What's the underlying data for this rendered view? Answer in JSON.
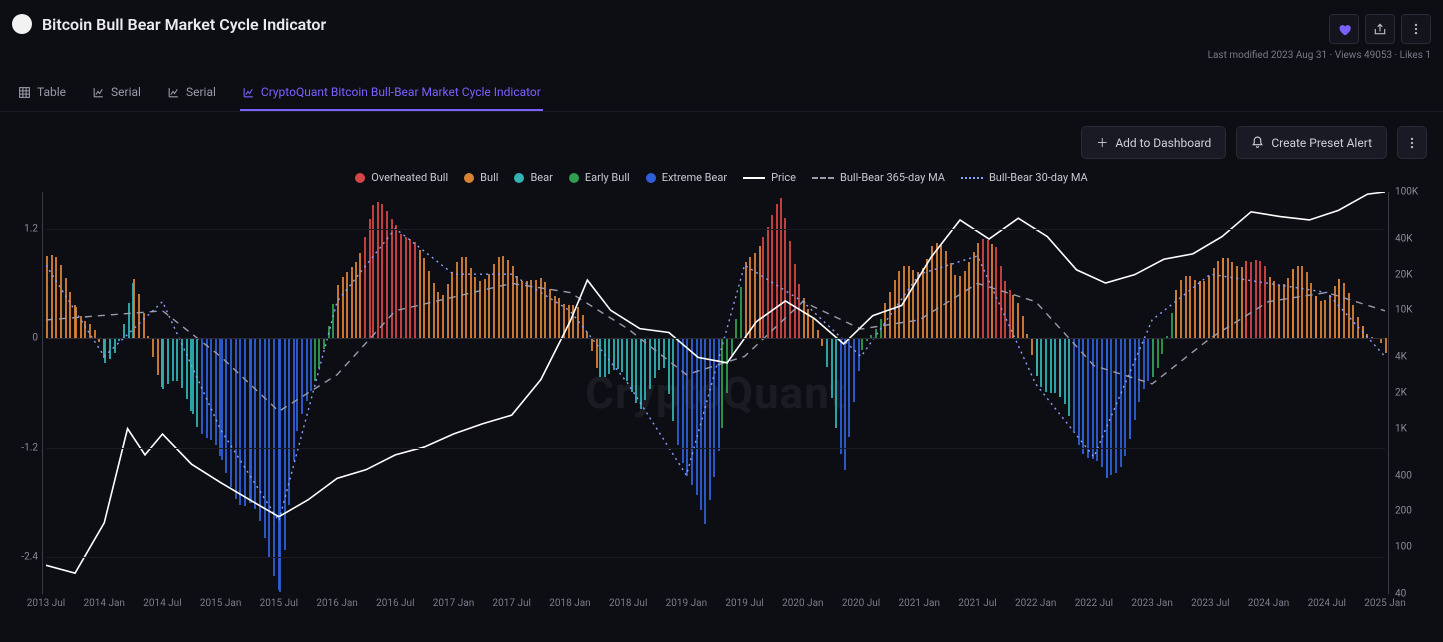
{
  "header": {
    "title": "Bitcoin Bull Bear Market Cycle Indicator",
    "meta": "Last modified 2023 Aug 31 · Views 49053 · Likes 1"
  },
  "tabs": {
    "items": [
      {
        "icon": "table",
        "label": "Table",
        "active": false
      },
      {
        "icon": "chart",
        "label": "Serial",
        "active": false
      },
      {
        "icon": "chart",
        "label": "Serial",
        "active": false
      },
      {
        "icon": "chart",
        "label": "CryptoQuant Bitcoin Bull-Bear Market Cycle Indicator",
        "active": true
      }
    ]
  },
  "toolbar": {
    "add_dashboard": "Add to Dashboard",
    "create_alert": "Create Preset Alert"
  },
  "legend": {
    "items": [
      {
        "type": "dot",
        "color": "#d64545",
        "label": "Overheated Bull"
      },
      {
        "type": "dot",
        "color": "#d98236",
        "label": "Bull"
      },
      {
        "type": "dot",
        "color": "#2fb3b3",
        "label": "Bear"
      },
      {
        "type": "dot",
        "color": "#2e9e4f",
        "label": "Early Bull"
      },
      {
        "type": "dot",
        "color": "#2e5fd6",
        "label": "Extreme Bear"
      },
      {
        "type": "line",
        "color": "#ffffff",
        "label": "Price"
      },
      {
        "type": "dash",
        "color": "#9a9aaa",
        "label": "Bull-Bear 365-day MA"
      },
      {
        "type": "dots",
        "color": "#8aa0ff",
        "label": "Bull-Bear 30-day MA"
      }
    ]
  },
  "chart": {
    "type": "combo-bar-line",
    "background_color": "#0d0d14",
    "grid_color": "#1b1b24",
    "watermark": "CryptoQuant",
    "left_axis": {
      "label": "",
      "ylim": [
        -2.8,
        1.6
      ],
      "ticks": [
        1.2,
        0,
        -1.2,
        -2.4
      ],
      "tick_labels": [
        "1.2",
        "0",
        "-1.2",
        "-2.4"
      ],
      "color": "#8b8b9a",
      "fontsize": 10
    },
    "right_axis": {
      "label": "",
      "scale": "log",
      "ticks": [
        100000,
        40000,
        20000,
        10000,
        4000,
        2000,
        1000,
        400,
        200,
        100,
        40
      ],
      "tick_labels": [
        "100K",
        "40K",
        "20K",
        "10K",
        "4K",
        "2K",
        "1K",
        "400",
        "200",
        "100",
        "40"
      ],
      "color": "#8b8b9a",
      "fontsize": 10
    },
    "x_axis": {
      "labels": [
        "2013 Jul",
        "2014 Jan",
        "2014 Jul",
        "2015 Jan",
        "2015 Jul",
        "2016 Jan",
        "2016 Jul",
        "2017 Jan",
        "2017 Jul",
        "2018 Jan",
        "2018 Jul",
        "2019 Jan",
        "2019 Jul",
        "2020 Jan",
        "2020 Jul",
        "2021 Jan",
        "2021 Jul",
        "2022 Jan",
        "2022 Jul",
        "2023 Jan",
        "2023 Jul",
        "2024 Jan",
        "2024 Jul",
        "2025 Jan"
      ],
      "color": "#7d7d8c",
      "fontsize": 10
    },
    "colors": {
      "overheated_bull": "#d64545",
      "bull": "#d98236",
      "bear": "#2fb3b3",
      "early_bull": "#2e9e4f",
      "extreme_bear": "#2e5fd6",
      "price": "#ffffff",
      "ma365": "#9a9aaa",
      "ma30": "#8aa0ff"
    },
    "indicator_series": [
      {
        "x": 0,
        "v": 0.9,
        "c": "bull"
      },
      {
        "x": 0.5,
        "v": 0.4,
        "c": "bull"
      },
      {
        "x": 1,
        "v": -0.3,
        "c": "bear"
      },
      {
        "x": 1.5,
        "v": 0.6,
        "c": "bull"
      },
      {
        "x": 2,
        "v": -0.5,
        "c": "bear"
      },
      {
        "x": 2.5,
        "v": -0.8,
        "c": "bear"
      },
      {
        "x": 3,
        "v": -1.4,
        "c": "extreme_bear"
      },
      {
        "x": 3.5,
        "v": -1.8,
        "c": "extreme_bear"
      },
      {
        "x": 4,
        "v": -2.7,
        "c": "extreme_bear"
      },
      {
        "x": 4.3,
        "v": -1.2,
        "c": "extreme_bear"
      },
      {
        "x": 4.6,
        "v": -0.4,
        "c": "early_bull"
      },
      {
        "x": 5,
        "v": 0.5,
        "c": "bull"
      },
      {
        "x": 5.3,
        "v": 1.0,
        "c": "bull"
      },
      {
        "x": 5.6,
        "v": 1.4,
        "c": "overheated_bull"
      },
      {
        "x": 6,
        "v": 1.3,
        "c": "overheated_bull"
      },
      {
        "x": 6.4,
        "v": 0.8,
        "c": "bull"
      },
      {
        "x": 6.8,
        "v": 0.6,
        "c": "bull"
      },
      {
        "x": 7.2,
        "v": 0.9,
        "c": "bull"
      },
      {
        "x": 7.6,
        "v": 0.7,
        "c": "bull"
      },
      {
        "x": 8,
        "v": 0.8,
        "c": "bull"
      },
      {
        "x": 8.4,
        "v": 0.5,
        "c": "bull"
      },
      {
        "x": 8.8,
        "v": 0.6,
        "c": "bull"
      },
      {
        "x": 9.2,
        "v": 0.2,
        "c": "bull"
      },
      {
        "x": 9.5,
        "v": -0.3,
        "c": "bear"
      },
      {
        "x": 9.8,
        "v": -0.5,
        "c": "bear"
      },
      {
        "x": 10.2,
        "v": -0.7,
        "c": "bear"
      },
      {
        "x": 10.6,
        "v": -0.4,
        "c": "bear"
      },
      {
        "x": 11,
        "v": -1.4,
        "c": "extreme_bear"
      },
      {
        "x": 11.3,
        "v": -2.1,
        "c": "extreme_bear"
      },
      {
        "x": 11.6,
        "v": -0.9,
        "c": "early_bull"
      },
      {
        "x": 12,
        "v": 0.7,
        "c": "bull"
      },
      {
        "x": 12.3,
        "v": 1.2,
        "c": "overheated_bull"
      },
      {
        "x": 12.6,
        "v": 1.45,
        "c": "overheated_bull"
      },
      {
        "x": 13,
        "v": 0.6,
        "c": "bull"
      },
      {
        "x": 13.4,
        "v": -0.4,
        "c": "bear"
      },
      {
        "x": 13.7,
        "v": -1.4,
        "c": "extreme_bear"
      },
      {
        "x": 14,
        "v": -0.3,
        "c": "early_bull"
      },
      {
        "x": 14.4,
        "v": 0.5,
        "c": "bull"
      },
      {
        "x": 14.8,
        "v": 0.8,
        "c": "bull"
      },
      {
        "x": 15.2,
        "v": 1.0,
        "c": "bull"
      },
      {
        "x": 15.6,
        "v": 0.7,
        "c": "bull"
      },
      {
        "x": 16,
        "v": 0.9,
        "c": "bull"
      },
      {
        "x": 16.3,
        "v": 1.1,
        "c": "overheated_bull"
      },
      {
        "x": 16.6,
        "v": 0.5,
        "c": "bull"
      },
      {
        "x": 17,
        "v": -0.3,
        "c": "bear"
      },
      {
        "x": 17.4,
        "v": -0.8,
        "c": "bear"
      },
      {
        "x": 17.8,
        "v": -1.2,
        "c": "extreme_bear"
      },
      {
        "x": 18.2,
        "v": -1.6,
        "c": "extreme_bear"
      },
      {
        "x": 18.6,
        "v": -1.0,
        "c": "extreme_bear"
      },
      {
        "x": 19,
        "v": -0.4,
        "c": "early_bull"
      },
      {
        "x": 19.4,
        "v": 0.4,
        "c": "bull"
      },
      {
        "x": 19.8,
        "v": 0.7,
        "c": "bull"
      },
      {
        "x": 20.2,
        "v": 0.8,
        "c": "bull"
      },
      {
        "x": 20.6,
        "v": 1.0,
        "c": "overheated_bull"
      },
      {
        "x": 21,
        "v": 0.6,
        "c": "bull"
      },
      {
        "x": 21.4,
        "v": 0.7,
        "c": "bull"
      },
      {
        "x": 21.8,
        "v": 0.5,
        "c": "bull"
      },
      {
        "x": 22.2,
        "v": 0.6,
        "c": "bull"
      },
      {
        "x": 22.6,
        "v": 0.3,
        "c": "bull"
      },
      {
        "x": 23,
        "v": -0.3,
        "c": "bear"
      }
    ],
    "price_series": [
      [
        0,
        70
      ],
      [
        0.5,
        60
      ],
      [
        1,
        160
      ],
      [
        1.4,
        1000
      ],
      [
        1.7,
        600
      ],
      [
        2,
        900
      ],
      [
        2.5,
        500
      ],
      [
        3,
        350
      ],
      [
        3.5,
        250
      ],
      [
        4,
        180
      ],
      [
        4.5,
        250
      ],
      [
        5,
        380
      ],
      [
        5.5,
        450
      ],
      [
        6,
        600
      ],
      [
        6.5,
        700
      ],
      [
        7,
        900
      ],
      [
        7.5,
        1100
      ],
      [
        8,
        1300
      ],
      [
        8.5,
        2600
      ],
      [
        9,
        8000
      ],
      [
        9.3,
        18000
      ],
      [
        9.7,
        10000
      ],
      [
        10.2,
        7000
      ],
      [
        10.7,
        6500
      ],
      [
        11.2,
        4000
      ],
      [
        11.7,
        3600
      ],
      [
        12.2,
        8000
      ],
      [
        12.7,
        12000
      ],
      [
        13.2,
        8500
      ],
      [
        13.7,
        5200
      ],
      [
        14.2,
        9000
      ],
      [
        14.7,
        11000
      ],
      [
        15.2,
        28000
      ],
      [
        15.7,
        58000
      ],
      [
        16.2,
        40000
      ],
      [
        16.7,
        60000
      ],
      [
        17.2,
        42000
      ],
      [
        17.7,
        22000
      ],
      [
        18.2,
        17000
      ],
      [
        18.7,
        20000
      ],
      [
        19.2,
        27000
      ],
      [
        19.7,
        30000
      ],
      [
        20.2,
        42000
      ],
      [
        20.7,
        68000
      ],
      [
        21.2,
        62000
      ],
      [
        21.7,
        58000
      ],
      [
        22.2,
        70000
      ],
      [
        22.7,
        96000
      ],
      [
        23,
        100000
      ]
    ],
    "ma365_series": [
      [
        0,
        0.2
      ],
      [
        2,
        0.3
      ],
      [
        3,
        -0.2
      ],
      [
        4,
        -0.8
      ],
      [
        5,
        -0.4
      ],
      [
        6,
        0.3
      ],
      [
        8,
        0.6
      ],
      [
        9,
        0.5
      ],
      [
        10,
        0.1
      ],
      [
        11,
        -0.4
      ],
      [
        12,
        -0.2
      ],
      [
        13,
        0.4
      ],
      [
        14,
        0.1
      ],
      [
        15,
        0.2
      ],
      [
        16,
        0.6
      ],
      [
        17,
        0.4
      ],
      [
        18,
        -0.3
      ],
      [
        19,
        -0.5
      ],
      [
        20,
        0.0
      ],
      [
        21,
        0.4
      ],
      [
        22,
        0.5
      ],
      [
        23,
        0.3
      ]
    ],
    "ma30_series": [
      [
        0,
        0.8
      ],
      [
        1,
        -0.2
      ],
      [
        2,
        0.4
      ],
      [
        3,
        -1.0
      ],
      [
        4,
        -2.0
      ],
      [
        5,
        0.4
      ],
      [
        6,
        1.2
      ],
      [
        7,
        0.7
      ],
      [
        8,
        0.7
      ],
      [
        9,
        0.3
      ],
      [
        10,
        -0.5
      ],
      [
        11,
        -1.5
      ],
      [
        12,
        0.8
      ],
      [
        13,
        0.4
      ],
      [
        14,
        -0.2
      ],
      [
        15,
        0.7
      ],
      [
        16,
        0.9
      ],
      [
        17,
        -0.5
      ],
      [
        18,
        -1.3
      ],
      [
        19,
        0.2
      ],
      [
        20,
        0.7
      ],
      [
        21,
        0.6
      ],
      [
        22,
        0.5
      ],
      [
        23,
        -0.2
      ]
    ]
  }
}
